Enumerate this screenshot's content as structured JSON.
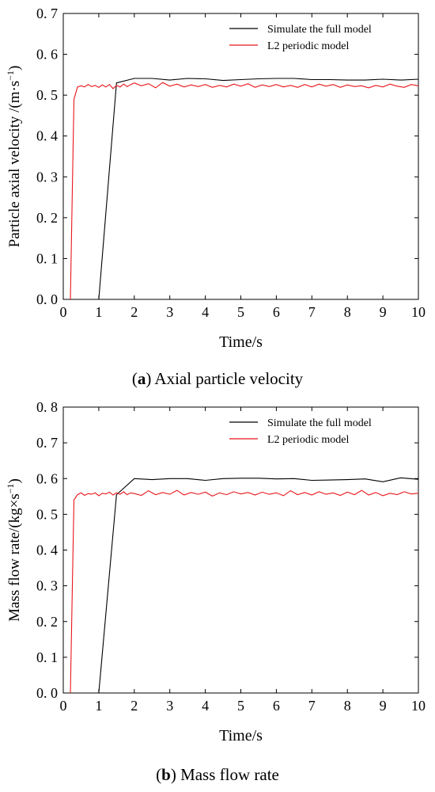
{
  "chart_data": [
    {
      "type": "line",
      "panel_letter": "a",
      "caption": "Axial particle velocity",
      "xlabel": "Time/s",
      "ylabel_main": "Particle axial velocity /(m·s",
      "ylabel_sup": "−1",
      "ylabel_end": ")",
      "xlim": [
        0,
        10
      ],
      "ylim": [
        0,
        0.7
      ],
      "xticks": [
        "0",
        "1",
        "2",
        "3",
        "4",
        "5",
        "6",
        "7",
        "8",
        "9",
        "10"
      ],
      "yticks": [
        "0. 0",
        "0. 1",
        "0. 2",
        "0. 3",
        "0. 4",
        "0. 5",
        "0. 6",
        "0. 7"
      ],
      "legend_position": "top-right",
      "series": [
        {
          "name": "Simulate the full model",
          "color": "#000000",
          "x": [
            1.0,
            1.5,
            2.0,
            2.5,
            3.0,
            3.5,
            4.0,
            4.5,
            5.0,
            5.5,
            6.0,
            6.5,
            7.0,
            7.5,
            8.0,
            8.5,
            9.0,
            9.5,
            10.0
          ],
          "y": [
            0.0,
            0.53,
            0.541,
            0.541,
            0.537,
            0.541,
            0.54,
            0.536,
            0.538,
            0.54,
            0.541,
            0.541,
            0.538,
            0.538,
            0.537,
            0.537,
            0.539,
            0.537,
            0.539
          ]
        },
        {
          "name": "L2 periodic model",
          "color": "#e8161b",
          "x": [
            0.2,
            0.3,
            0.4,
            0.5,
            0.6,
            0.7,
            0.8,
            0.9,
            1.0,
            1.1,
            1.2,
            1.3,
            1.4,
            1.5,
            1.6,
            1.7,
            1.8,
            1.9,
            2.0,
            2.2,
            2.4,
            2.6,
            2.8,
            3.0,
            3.2,
            3.4,
            3.6,
            3.8,
            4.0,
            4.2,
            4.4,
            4.6,
            4.8,
            5.0,
            5.2,
            5.4,
            5.6,
            5.8,
            6.0,
            6.2,
            6.4,
            6.6,
            6.8,
            7.0,
            7.2,
            7.4,
            7.6,
            7.8,
            8.0,
            8.2,
            8.4,
            8.6,
            8.8,
            9.0,
            9.2,
            9.4,
            9.6,
            9.8,
            10.0
          ],
          "y": [
            0.0,
            0.49,
            0.52,
            0.523,
            0.52,
            0.526,
            0.521,
            0.524,
            0.519,
            0.525,
            0.52,
            0.526,
            0.516,
            0.524,
            0.52,
            0.527,
            0.521,
            0.526,
            0.53,
            0.523,
            0.528,
            0.518,
            0.531,
            0.522,
            0.527,
            0.52,
            0.525,
            0.521,
            0.526,
            0.519,
            0.524,
            0.52,
            0.527,
            0.522,
            0.528,
            0.519,
            0.525,
            0.521,
            0.526,
            0.52,
            0.524,
            0.519,
            0.526,
            0.52,
            0.527,
            0.522,
            0.526,
            0.519,
            0.525,
            0.521,
            0.523,
            0.518,
            0.524,
            0.52,
            0.527,
            0.522,
            0.519,
            0.526,
            0.523
          ]
        }
      ]
    },
    {
      "type": "line",
      "panel_letter": "b",
      "caption": "Mass flow rate",
      "xlabel": "Time/s",
      "ylabel_main": "Mass flow rate/(kg×s",
      "ylabel_sup": "−1",
      "ylabel_end": ")",
      "xlim": [
        0,
        10
      ],
      "ylim": [
        0,
        0.8
      ],
      "xticks": [
        "0",
        "1",
        "2",
        "3",
        "4",
        "5",
        "6",
        "7",
        "8",
        "9",
        "10"
      ],
      "yticks": [
        "0. 0",
        "0. 1",
        "0. 2",
        "0. 3",
        "0. 4",
        "0. 5",
        "0. 6",
        "0. 7",
        "0. 8"
      ],
      "legend_position": "top-right",
      "series": [
        {
          "name": "Simulate the full model",
          "color": "#000000",
          "x": [
            1.0,
            1.5,
            2.0,
            2.5,
            3.0,
            3.5,
            4.0,
            4.5,
            5.0,
            5.5,
            6.0,
            6.5,
            7.0,
            7.5,
            8.0,
            8.5,
            9.0,
            9.5,
            10.0
          ],
          "y": [
            0.0,
            0.555,
            0.6,
            0.597,
            0.6,
            0.6,
            0.595,
            0.6,
            0.601,
            0.601,
            0.599,
            0.6,
            0.595,
            0.596,
            0.597,
            0.599,
            0.591,
            0.602,
            0.598
          ]
        },
        {
          "name": "L2 periodic model",
          "color": "#e8161b",
          "x": [
            0.2,
            0.3,
            0.4,
            0.5,
            0.6,
            0.7,
            0.8,
            0.9,
            1.0,
            1.1,
            1.2,
            1.3,
            1.4,
            1.5,
            1.6,
            1.7,
            1.8,
            1.9,
            2.0,
            2.2,
            2.4,
            2.6,
            2.8,
            3.0,
            3.2,
            3.4,
            3.6,
            3.8,
            4.0,
            4.2,
            4.4,
            4.6,
            4.8,
            5.0,
            5.2,
            5.4,
            5.6,
            5.8,
            6.0,
            6.2,
            6.4,
            6.6,
            6.8,
            7.0,
            7.2,
            7.4,
            7.6,
            7.8,
            8.0,
            8.2,
            8.4,
            8.6,
            8.8,
            9.0,
            9.2,
            9.4,
            9.6,
            9.8,
            10.0
          ],
          "y": [
            0.0,
            0.54,
            0.555,
            0.56,
            0.553,
            0.558,
            0.556,
            0.56,
            0.552,
            0.559,
            0.557,
            0.562,
            0.554,
            0.56,
            0.556,
            0.563,
            0.555,
            0.56,
            0.558,
            0.553,
            0.566,
            0.555,
            0.561,
            0.556,
            0.567,
            0.554,
            0.561,
            0.556,
            0.562,
            0.551,
            0.56,
            0.555,
            0.563,
            0.557,
            0.561,
            0.554,
            0.562,
            0.556,
            0.56,
            0.552,
            0.566,
            0.555,
            0.561,
            0.554,
            0.563,
            0.556,
            0.56,
            0.553,
            0.562,
            0.555,
            0.567,
            0.554,
            0.561,
            0.552,
            0.559,
            0.555,
            0.563,
            0.557,
            0.559
          ]
        }
      ]
    }
  ]
}
